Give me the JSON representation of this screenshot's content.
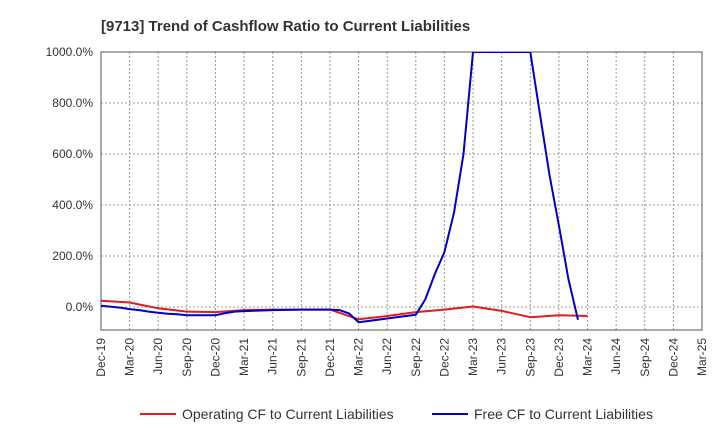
{
  "chart_data": {
    "type": "line",
    "title": "[9713]  Trend of Cashflow Ratio to Current Liabilities",
    "xlabel": "",
    "ylabel": "",
    "ylim": [
      -90,
      1000
    ],
    "yticks": [
      0,
      200,
      400,
      600,
      800,
      1000
    ],
    "ytick_labels": [
      "0.0%",
      "200.0%",
      "400.0%",
      "600.0%",
      "800.0%",
      "1000.0%"
    ],
    "x_tick_labels": [
      "Dec-19",
      "Mar-20",
      "Jun-20",
      "Sep-20",
      "Dec-20",
      "Mar-21",
      "Jun-21",
      "Sep-21",
      "Dec-21",
      "Mar-22",
      "Jun-22",
      "Sep-22",
      "Dec-22",
      "Mar-23",
      "Jun-23",
      "Sep-23",
      "Dec-23",
      "Mar-24",
      "Jun-24",
      "Sep-24",
      "Dec-24",
      "Mar-25"
    ],
    "grid": true,
    "legend_position": "bottom",
    "series": [
      {
        "name": "Operating CF to Current Liabilities",
        "color": "#e41a1c",
        "points": [
          [
            "Dec-19",
            25
          ],
          [
            "Mar-20",
            18
          ],
          [
            "Jun-20",
            -5
          ],
          [
            "Sep-20",
            -18
          ],
          [
            "Dec-20",
            -20
          ],
          [
            "Mar-21",
            -12
          ],
          [
            "Jun-21",
            -10
          ],
          [
            "Sep-21",
            -10
          ],
          [
            "Dec-21",
            -10
          ],
          [
            "Mar-22",
            -48
          ],
          [
            "Jun-22",
            -35
          ],
          [
            "Sep-22",
            -20
          ],
          [
            "Dec-22",
            -10
          ],
          [
            "Mar-23",
            2
          ],
          [
            "Jun-23",
            -15
          ],
          [
            "Sep-23",
            -40
          ],
          [
            "Dec-23",
            -32
          ],
          [
            "Mar-24",
            -35
          ]
        ]
      },
      {
        "name": "Free CF to Current Liabilities",
        "color": "#0000cc",
        "points": [
          [
            "Dec-19",
            5
          ],
          [
            "Feb-20",
            -2
          ],
          [
            "Mar-20",
            -8
          ],
          [
            "Apr-20",
            -12
          ],
          [
            "May-20",
            -18
          ],
          [
            "Jun-20",
            -22
          ],
          [
            "Jul-20",
            -26
          ],
          [
            "Aug-20",
            -28
          ],
          [
            "Sep-20",
            -32
          ],
          [
            "Oct-20",
            -32
          ],
          [
            "Nov-20",
            -32
          ],
          [
            "Dec-20",
            -32
          ],
          [
            "Jan-21",
            -24
          ],
          [
            "Feb-21",
            -18
          ],
          [
            "Mar-21",
            -16
          ],
          [
            "Jun-21",
            -12
          ],
          [
            "Sep-21",
            -10
          ],
          [
            "Dec-21",
            -10
          ],
          [
            "Jan-22",
            -12
          ],
          [
            "Feb-22",
            -25
          ],
          [
            "Mar-22",
            -60
          ],
          [
            "Jun-22",
            -45
          ],
          [
            "Sep-22",
            -30
          ],
          [
            "Oct-22",
            30
          ],
          [
            "Nov-22",
            130
          ],
          [
            "Dec-22",
            215
          ],
          [
            "Jan-23",
            370
          ],
          [
            "Feb-23",
            600
          ],
          [
            "Mar-23",
            1000
          ],
          [
            "Apr-23",
            1000
          ],
          [
            "May-23",
            1000
          ],
          [
            "Jun-23",
            1000
          ],
          [
            "Jul-23",
            1000
          ],
          [
            "Aug-23",
            1000
          ],
          [
            "Sep-23",
            1000
          ],
          [
            "Oct-23",
            760
          ],
          [
            "Nov-23",
            520
          ],
          [
            "Dec-23",
            320
          ],
          [
            "Jan-24",
            110
          ],
          [
            "Feb-24",
            -50
          ]
        ]
      }
    ]
  }
}
